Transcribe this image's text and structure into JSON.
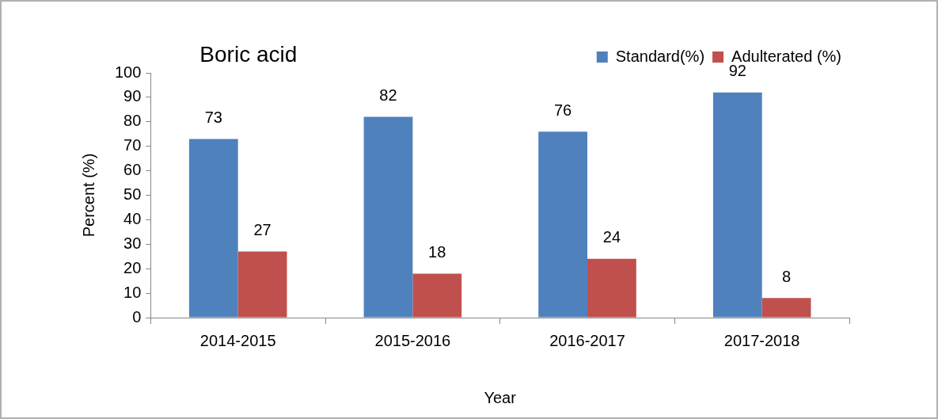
{
  "chart_data": {
    "type": "bar",
    "title": "Boric acid",
    "xlabel": "Year",
    "ylabel": "Percent (%)",
    "categories": [
      "2014-2015",
      "2015-2016",
      "2016-2017",
      "2017-2018"
    ],
    "series": [
      {
        "name": "Standard(%)",
        "color": "#4f81bd",
        "values": [
          73,
          82,
          76,
          92
        ]
      },
      {
        "name": "Adulterated (%)",
        "color": "#c0504d",
        "values": [
          27,
          18,
          24,
          8
        ]
      }
    ],
    "ylim": [
      0,
      100
    ],
    "yticks": [
      0,
      10,
      20,
      30,
      40,
      50,
      60,
      70,
      80,
      90,
      100
    ],
    "grid": false,
    "legend": "top right",
    "data_labels": true
  }
}
